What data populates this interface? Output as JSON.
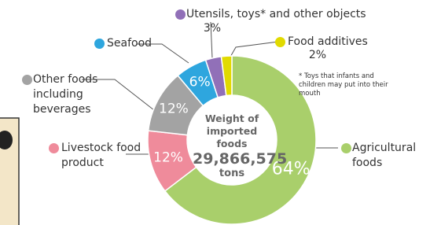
{
  "chart_data": {
    "type": "donut",
    "categories": [
      "Agricultural foods",
      "Livestock food product",
      "Other foods including beverages",
      "Seafood",
      "Utensils, toys* and other objects",
      "Food additives"
    ],
    "values": [
      64,
      12,
      12,
      6,
      3,
      2
    ],
    "value_labels": [
      "64%",
      "12%",
      "12%",
      "6%",
      "3%",
      "2%"
    ],
    "colors": [
      "#a9cf6b",
      "#ef8b9b",
      "#a3a3a3",
      "#2ea6de",
      "#9170b8",
      "#e1da00"
    ],
    "center_title": "Weight of imported foods",
    "center_value": "29,866,575",
    "center_unit": "tons",
    "note": "* Toys that infants and children may put into their mouth"
  }
}
